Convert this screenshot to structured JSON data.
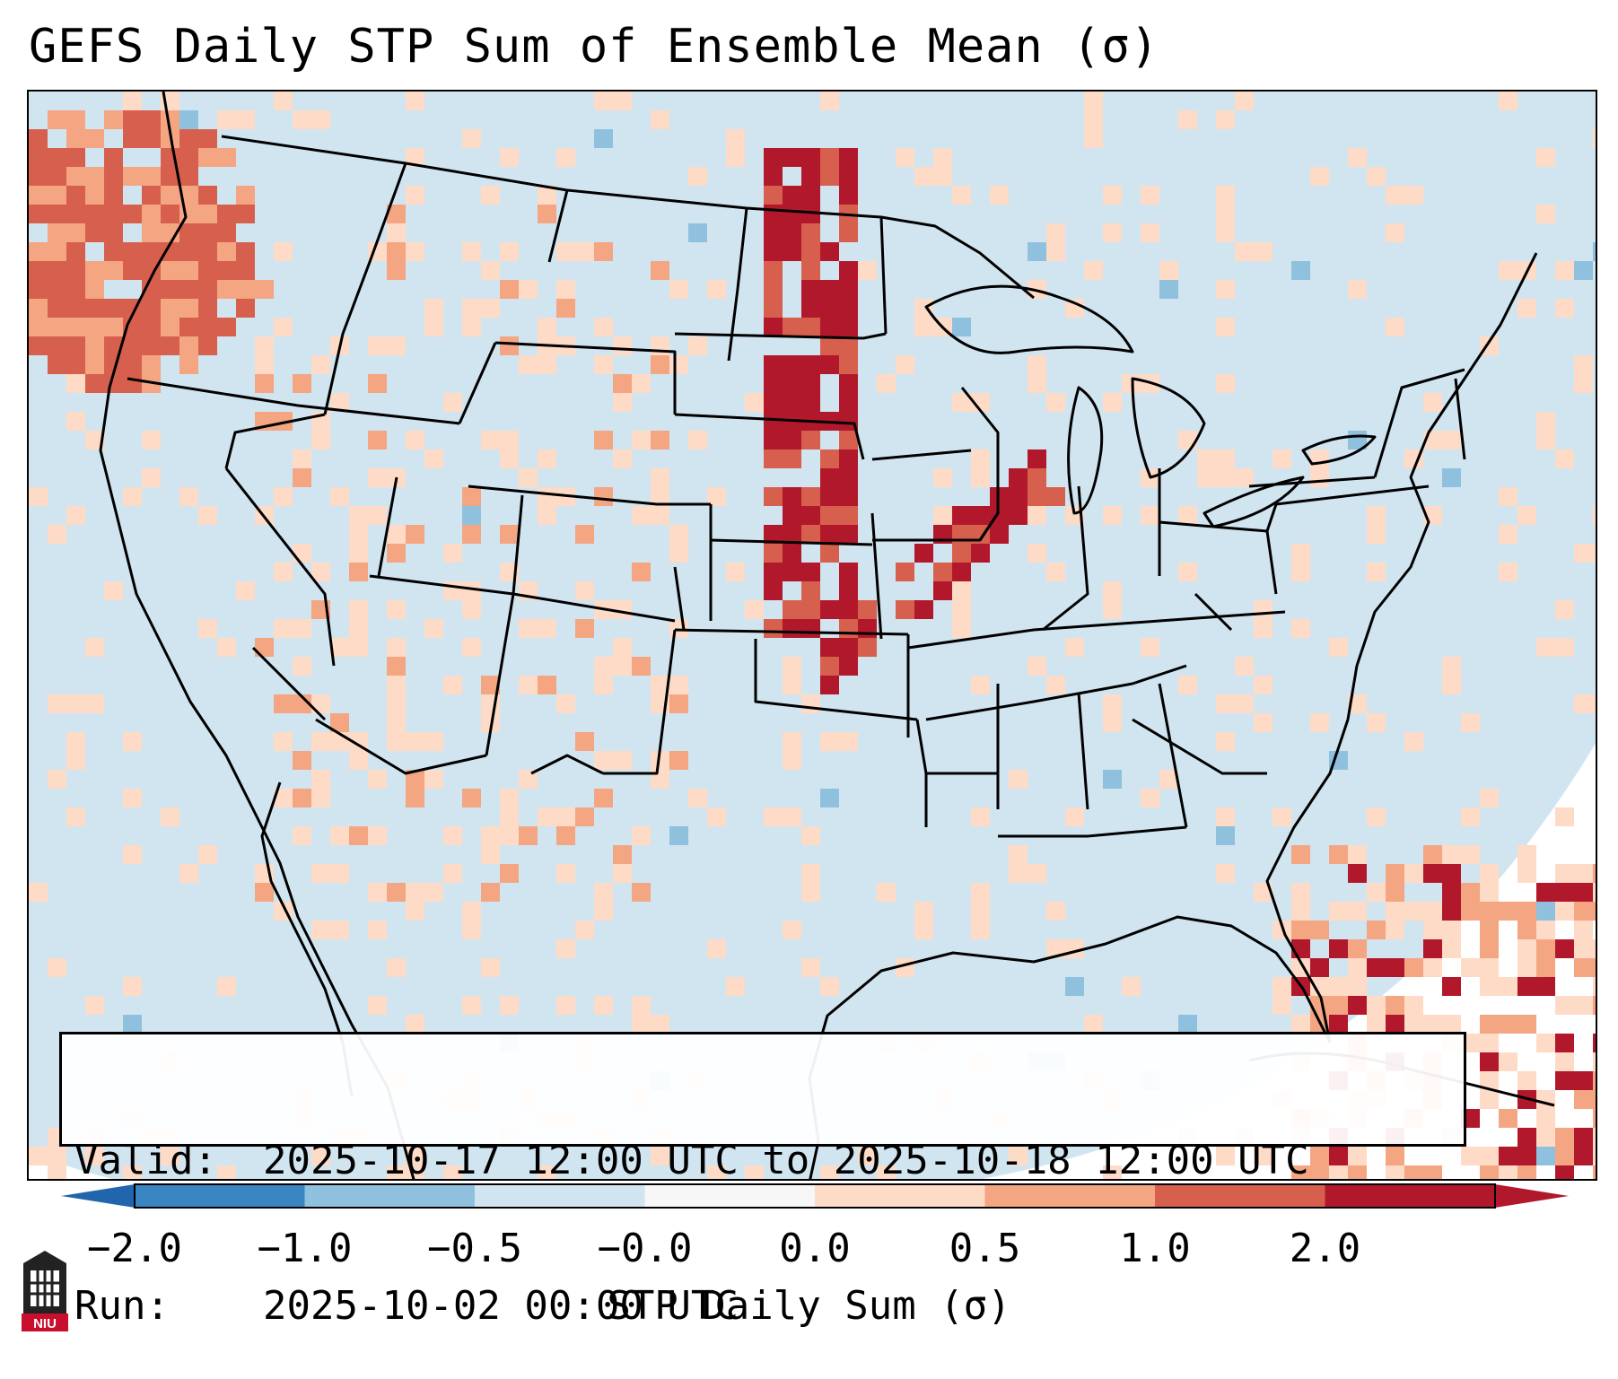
{
  "title": "GEFS Daily STP Sum of Ensemble Mean (σ)",
  "info": {
    "valid_label": "Valid:",
    "valid_value": "2025-10-17 12:00 UTC to 2025-10-18 12:00 UTC",
    "run_label": "Run:",
    "run_value": "2025-10-02 00:00 UTC"
  },
  "colorbar": {
    "label": "STP Daily Sum (σ)",
    "ticks": [
      "−2.0",
      "−1.0",
      "−0.5",
      "−0.0",
      "0.0",
      "0.5",
      "1.0",
      "2.0"
    ],
    "bin_colors": [
      "#3a86c3",
      "#8fc1de",
      "#d1e5f0",
      "#f7f7f7",
      "#fddbc7",
      "#f4a582",
      "#d6604d",
      "#b2182b"
    ],
    "under_color": "#2166ac",
    "over_color": "#b2182b"
  },
  "map": {
    "background_color": "#d1e5f0",
    "outline_color": "#000000"
  },
  "logo_text": "NIU"
}
